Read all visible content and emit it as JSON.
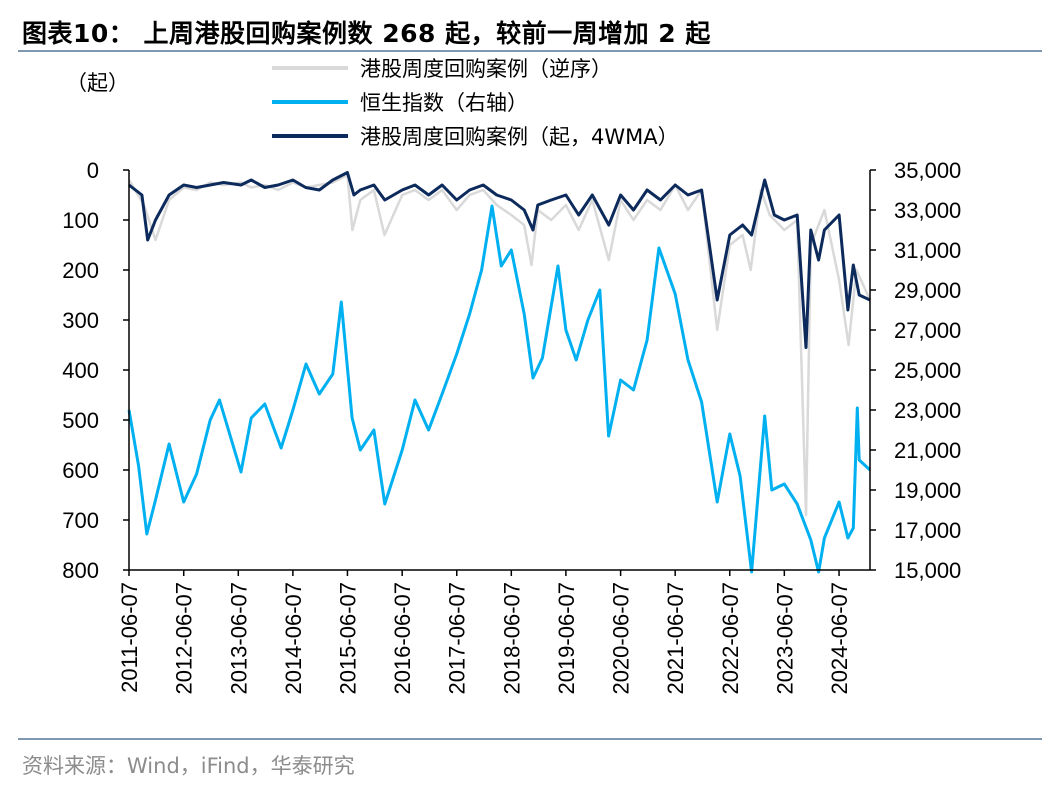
{
  "header": {
    "title": "图表10：  上周港股回购案例数 268 起，较前一周增加 2 起"
  },
  "footer": {
    "source": "资料来源：Wind，iFind，华泰研究"
  },
  "chart_data": {
    "type": "line",
    "unit_left": "（起）",
    "left_axis": {
      "range": [
        0,
        800
      ],
      "inverted": true,
      "ticks": [
        "0",
        "100",
        "200",
        "300",
        "400",
        "500",
        "600",
        "700",
        "800"
      ]
    },
    "right_axis": {
      "range": [
        15000,
        35000
      ],
      "ticks": [
        "35,000",
        "33,000",
        "31,000",
        "29,000",
        "27,000",
        "25,000",
        "23,000",
        "21,000",
        "19,000",
        "17,000",
        "15,000"
      ]
    },
    "x_ticks": [
      "2011-06-07",
      "2012-06-07",
      "2013-06-07",
      "2014-06-07",
      "2015-06-07",
      "2016-06-07",
      "2017-06-07",
      "2018-06-07",
      "2019-06-07",
      "2020-06-07",
      "2021-06-07",
      "2022-06-07",
      "2023-06-07",
      "2024-06-07"
    ],
    "x_range": [
      "2011-06-07",
      "2024-12-31"
    ],
    "legend_position": "top",
    "series": [
      {
        "name": "港股周度回购案例（逆序）",
        "axis": "left",
        "color": "#d9d9d9",
        "points": [
          [
            "2011-06-07",
            20
          ],
          [
            "2011-09-15",
            70
          ],
          [
            "2011-12-01",
            140
          ],
          [
            "2012-03-01",
            60
          ],
          [
            "2012-06-07",
            35
          ],
          [
            "2012-09-01",
            40
          ],
          [
            "2012-12-01",
            25
          ],
          [
            "2013-03-01",
            30
          ],
          [
            "2013-06-25",
            25
          ],
          [
            "2013-09-01",
            35
          ],
          [
            "2013-12-01",
            30
          ],
          [
            "2014-03-01",
            40
          ],
          [
            "2014-06-07",
            25
          ],
          [
            "2014-09-01",
            35
          ],
          [
            "2014-12-01",
            30
          ],
          [
            "2015-03-01",
            25
          ],
          [
            "2015-06-07",
            10
          ],
          [
            "2015-07-10",
            120
          ],
          [
            "2015-09-01",
            60
          ],
          [
            "2015-12-01",
            40
          ],
          [
            "2016-02-10",
            130
          ],
          [
            "2016-06-07",
            50
          ],
          [
            "2016-09-01",
            40
          ],
          [
            "2016-12-01",
            60
          ],
          [
            "2017-03-01",
            40
          ],
          [
            "2017-06-07",
            80
          ],
          [
            "2017-09-01",
            50
          ],
          [
            "2017-12-01",
            40
          ],
          [
            "2018-03-01",
            70
          ],
          [
            "2018-06-07",
            90
          ],
          [
            "2018-09-01",
            110
          ],
          [
            "2018-10-20",
            190
          ],
          [
            "2018-12-01",
            80
          ],
          [
            "2019-03-01",
            100
          ],
          [
            "2019-06-07",
            70
          ],
          [
            "2019-09-01",
            120
          ],
          [
            "2019-12-01",
            60
          ],
          [
            "2020-03-20",
            180
          ],
          [
            "2020-06-07",
            60
          ],
          [
            "2020-09-01",
            100
          ],
          [
            "2020-12-01",
            60
          ],
          [
            "2021-03-01",
            80
          ],
          [
            "2021-06-07",
            30
          ],
          [
            "2021-09-01",
            80
          ],
          [
            "2021-12-01",
            40
          ],
          [
            "2022-03-15",
            320
          ],
          [
            "2022-06-07",
            150
          ],
          [
            "2022-09-01",
            130
          ],
          [
            "2022-10-25",
            200
          ],
          [
            "2023-01-01",
            40
          ],
          [
            "2023-03-01",
            90
          ],
          [
            "2023-06-07",
            120
          ],
          [
            "2023-09-01",
            100
          ],
          [
            "2023-10-30",
            690
          ],
          [
            "2023-12-01",
            150
          ],
          [
            "2024-03-01",
            80
          ],
          [
            "2024-06-07",
            220
          ],
          [
            "2024-08-10",
            350
          ],
          [
            "2024-10-01",
            200
          ],
          [
            "2024-12-31",
            260
          ]
        ]
      },
      {
        "name": "恒生指数（右轴）",
        "axis": "right",
        "color": "#00b0f0",
        "points": [
          [
            "2011-06-07",
            23000
          ],
          [
            "2011-08-10",
            20200
          ],
          [
            "2011-10-04",
            16800
          ],
          [
            "2011-12-01",
            18500
          ],
          [
            "2012-03-01",
            21300
          ],
          [
            "2012-06-07",
            18400
          ],
          [
            "2012-09-01",
            19800
          ],
          [
            "2012-12-01",
            22500
          ],
          [
            "2013-02-01",
            23500
          ],
          [
            "2013-06-25",
            19900
          ],
          [
            "2013-09-01",
            22600
          ],
          [
            "2013-12-01",
            23300
          ],
          [
            "2014-03-20",
            21100
          ],
          [
            "2014-06-07",
            23000
          ],
          [
            "2014-09-03",
            25300
          ],
          [
            "2014-12-01",
            23800
          ],
          [
            "2015-03-01",
            24800
          ],
          [
            "2015-04-27",
            28400
          ],
          [
            "2015-07-08",
            22600
          ],
          [
            "2015-09-01",
            21000
          ],
          [
            "2015-12-01",
            22000
          ],
          [
            "2016-02-12",
            18300
          ],
          [
            "2016-06-07",
            21000
          ],
          [
            "2016-09-01",
            23500
          ],
          [
            "2016-12-01",
            22000
          ],
          [
            "2017-03-01",
            23800
          ],
          [
            "2017-06-07",
            25800
          ],
          [
            "2017-09-01",
            27800
          ],
          [
            "2017-11-20",
            30000
          ],
          [
            "2018-01-29",
            33200
          ],
          [
            "2018-04-01",
            30200
          ],
          [
            "2018-06-07",
            31000
          ],
          [
            "2018-09-01",
            27800
          ],
          [
            "2018-10-30",
            24600
          ],
          [
            "2019-01-01",
            25600
          ],
          [
            "2019-04-15",
            30200
          ],
          [
            "2019-06-07",
            27000
          ],
          [
            "2019-08-15",
            25500
          ],
          [
            "2019-11-01",
            27500
          ],
          [
            "2020-01-20",
            29000
          ],
          [
            "2020-03-19",
            21700
          ],
          [
            "2020-06-07",
            24500
          ],
          [
            "2020-09-01",
            24000
          ],
          [
            "2020-12-01",
            26500
          ],
          [
            "2021-02-18",
            31100
          ],
          [
            "2021-06-07",
            28800
          ],
          [
            "2021-09-01",
            25500
          ],
          [
            "2021-12-01",
            23400
          ],
          [
            "2022-03-15",
            18400
          ],
          [
            "2022-06-07",
            21800
          ],
          [
            "2022-08-15",
            19700
          ],
          [
            "2022-10-31",
            14900
          ],
          [
            "2023-01-27",
            22700
          ],
          [
            "2023-03-15",
            19000
          ],
          [
            "2023-06-07",
            19300
          ],
          [
            "2023-09-01",
            18300
          ],
          [
            "2023-12-01",
            16500
          ],
          [
            "2024-01-22",
            14900
          ],
          [
            "2024-03-01",
            16600
          ],
          [
            "2024-06-07",
            18400
          ],
          [
            "2024-08-05",
            16600
          ],
          [
            "2024-09-10",
            17100
          ],
          [
            "2024-10-07",
            23100
          ],
          [
            "2024-10-20",
            20500
          ],
          [
            "2024-12-31",
            20000
          ]
        ]
      },
      {
        "name": "港股周度回购案例（起，4WMA）",
        "axis": "left",
        "color": "#0c2a5b",
        "points": [
          [
            "2011-06-07",
            30
          ],
          [
            "2011-09-01",
            50
          ],
          [
            "2011-10-10",
            140
          ],
          [
            "2011-12-01",
            100
          ],
          [
            "2012-03-01",
            50
          ],
          [
            "2012-06-07",
            30
          ],
          [
            "2012-09-01",
            35
          ],
          [
            "2012-12-01",
            30
          ],
          [
            "2013-03-01",
            25
          ],
          [
            "2013-06-25",
            30
          ],
          [
            "2013-09-01",
            20
          ],
          [
            "2013-12-01",
            35
          ],
          [
            "2014-03-01",
            30
          ],
          [
            "2014-06-07",
            20
          ],
          [
            "2014-09-01",
            35
          ],
          [
            "2014-12-01",
            40
          ],
          [
            "2015-03-01",
            20
          ],
          [
            "2015-06-07",
            5
          ],
          [
            "2015-07-20",
            50
          ],
          [
            "2015-09-01",
            40
          ],
          [
            "2015-12-01",
            30
          ],
          [
            "2016-02-12",
            60
          ],
          [
            "2016-06-07",
            40
          ],
          [
            "2016-09-01",
            30
          ],
          [
            "2016-12-01",
            50
          ],
          [
            "2017-03-01",
            30
          ],
          [
            "2017-06-07",
            60
          ],
          [
            "2017-09-01",
            40
          ],
          [
            "2017-12-01",
            30
          ],
          [
            "2018-03-01",
            50
          ],
          [
            "2018-06-07",
            60
          ],
          [
            "2018-09-01",
            80
          ],
          [
            "2018-10-30",
            120
          ],
          [
            "2018-12-01",
            70
          ],
          [
            "2019-03-01",
            60
          ],
          [
            "2019-06-07",
            50
          ],
          [
            "2019-09-01",
            90
          ],
          [
            "2019-12-01",
            50
          ],
          [
            "2020-03-20",
            110
          ],
          [
            "2020-06-07",
            50
          ],
          [
            "2020-09-01",
            80
          ],
          [
            "2020-12-01",
            40
          ],
          [
            "2021-03-01",
            60
          ],
          [
            "2021-06-07",
            30
          ],
          [
            "2021-09-01",
            50
          ],
          [
            "2021-12-01",
            40
          ],
          [
            "2022-03-15",
            260
          ],
          [
            "2022-06-07",
            130
          ],
          [
            "2022-09-01",
            110
          ],
          [
            "2022-10-31",
            130
          ],
          [
            "2023-01-27",
            20
          ],
          [
            "2023-04-01",
            90
          ],
          [
            "2023-06-07",
            100
          ],
          [
            "2023-09-01",
            90
          ],
          [
            "2023-10-30",
            355
          ],
          [
            "2023-12-01",
            120
          ],
          [
            "2024-01-22",
            180
          ],
          [
            "2024-03-01",
            120
          ],
          [
            "2024-06-07",
            90
          ],
          [
            "2024-08-05",
            280
          ],
          [
            "2024-09-10",
            190
          ],
          [
            "2024-10-20",
            250
          ],
          [
            "2024-12-31",
            260
          ]
        ]
      }
    ]
  }
}
